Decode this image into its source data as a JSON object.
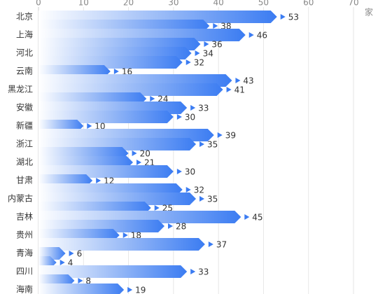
{
  "chart_data": {
    "type": "bar",
    "orientation": "horizontal",
    "x_label": "家",
    "categories": [
      "北京",
      null,
      "上海",
      null,
      "河北",
      null,
      "云南",
      null,
      "黑龙江",
      null,
      "安徽",
      null,
      "新疆",
      null,
      "浙江",
      null,
      "湖北",
      null,
      "甘肃",
      null,
      "内蒙古",
      null,
      "吉林",
      null,
      "贵州",
      null,
      "青海",
      null,
      "四川",
      null,
      "海南"
    ],
    "values": [
      53,
      38,
      46,
      36,
      34,
      32,
      16,
      43,
      41,
      24,
      33,
      30,
      10,
      39,
      35,
      20,
      21,
      30,
      12,
      32,
      35,
      25,
      45,
      28,
      18,
      37,
      6,
      4,
      33,
      8,
      19
    ],
    "color": "#3b7cf2",
    "xlim": [
      0,
      70
    ],
    "xticks": [
      0,
      10,
      20,
      30,
      40,
      50,
      60,
      70
    ],
    "grid": true
  }
}
